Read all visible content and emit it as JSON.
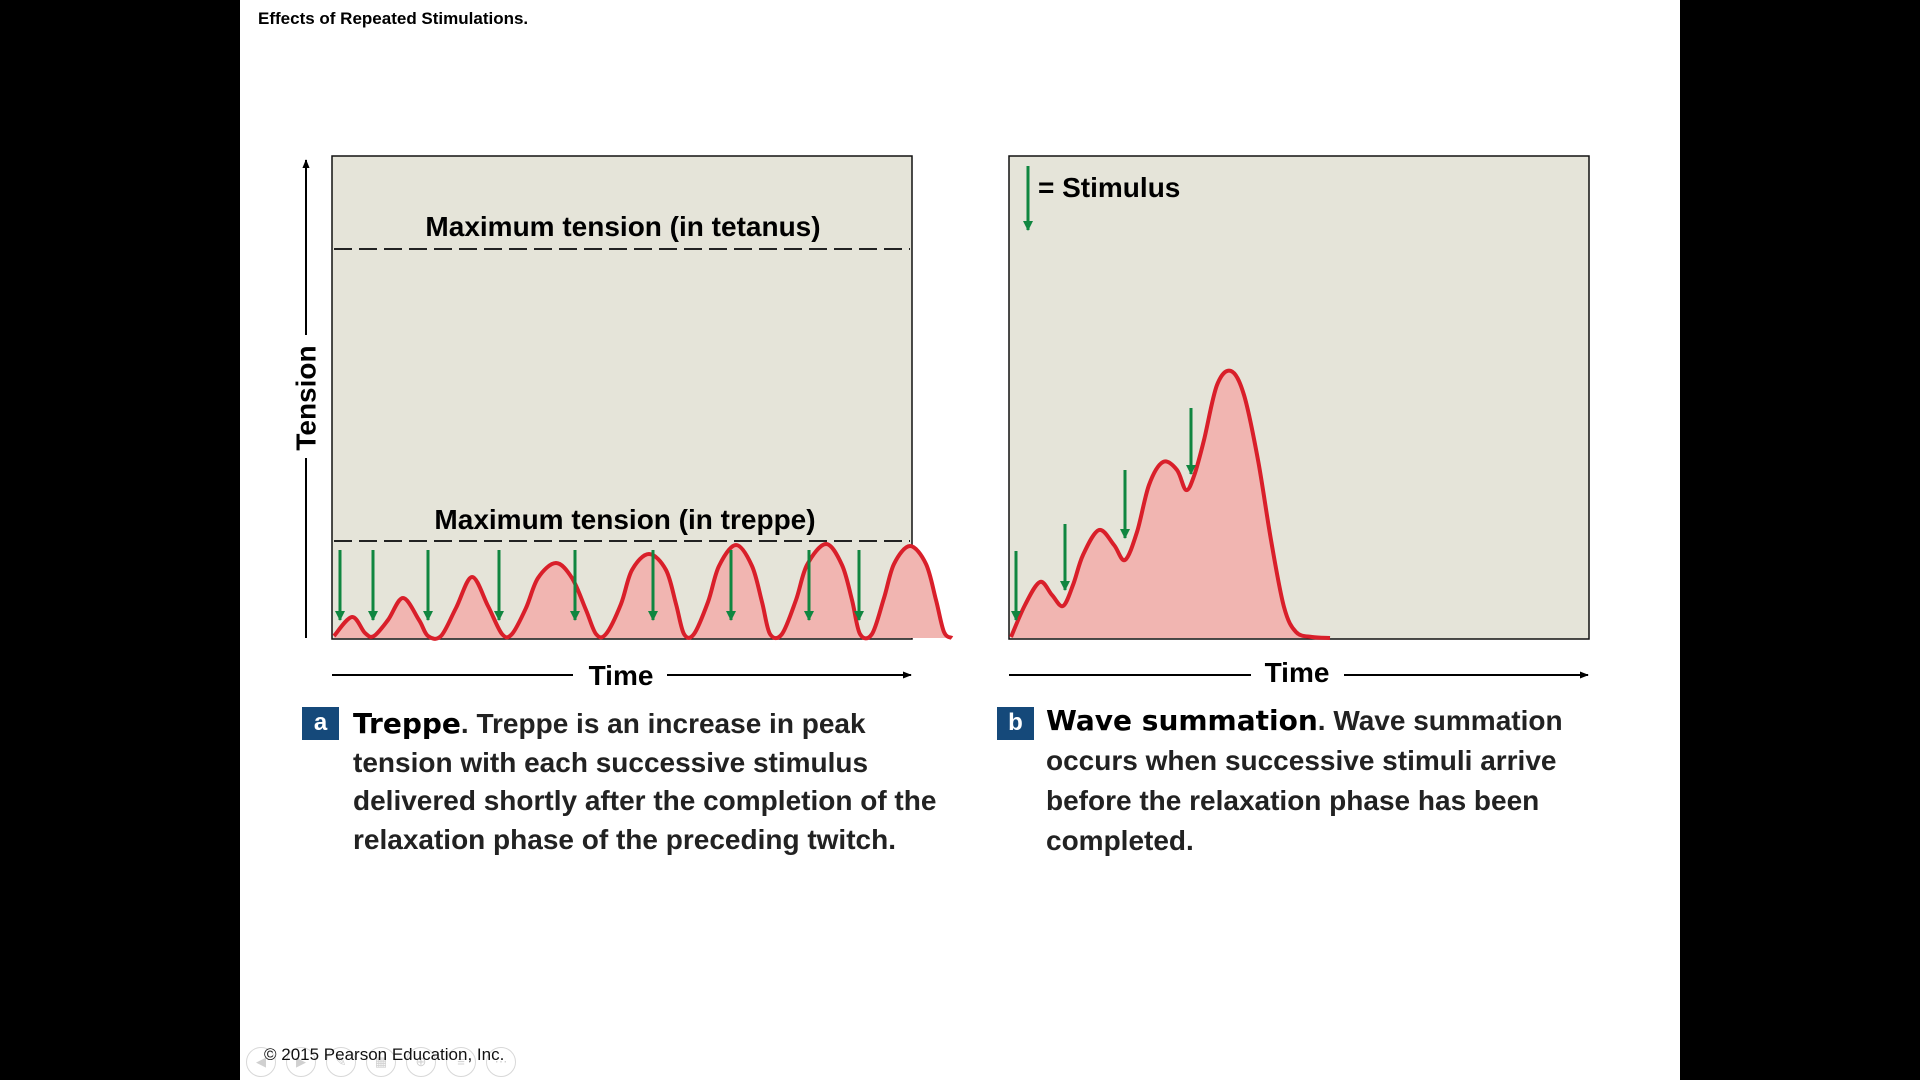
{
  "slide": {
    "title": "Effects of Repeated Stimulations."
  },
  "panel_a": {
    "y_axis_label": "Tension",
    "x_axis_label": "Time",
    "tetanus_label": "Maximum tension (in tetanus)",
    "treppe_label": "Maximum tension (in treppe)",
    "badge": "a",
    "caption_lead": "Treppe",
    "caption_text": ". Treppe is an increase in peak tension with each successive stimulus delivered shortly after the completion of the relaxation phase of the preceding twitch."
  },
  "panel_b": {
    "legend_label": "= Stimulus",
    "x_axis_label": "Time",
    "badge": "b",
    "caption_lead": "Wave summation",
    "caption_text": ". Wave summation occurs when successive stimuli arrive before the relaxation phase has been completed."
  },
  "footer": {
    "copyright": "© 2015 Pearson Education, Inc."
  },
  "colors": {
    "panel_bg": "#e5e4d9",
    "curve": "#d91f2a",
    "curve_fill": "#f1b5b1",
    "stimulus_arrow": "#108640",
    "badge": "#15497a"
  },
  "icons": [
    "stimulus-arrow-icon",
    "axis-arrow-icon"
  ]
}
